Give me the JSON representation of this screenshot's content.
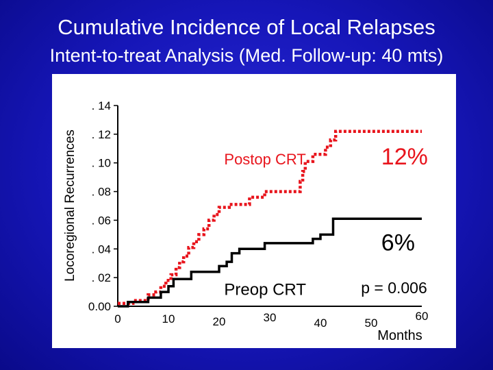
{
  "slide": {
    "title": "Cumulative Incidence of Local Relapses",
    "subtitle": "Intent-to-treat Analysis (Med. Follow-up: 40 mts)"
  },
  "chart_data": {
    "type": "line",
    "title": "Cumulative Incidence of Local Relapses",
    "subtitle": "Intent-to-treat Analysis (Med. Follow-up: 40 mts)",
    "xlabel": "Months",
    "ylabel": "Locoregional Recurrences",
    "xlim": [
      0,
      60
    ],
    "ylim": [
      0,
      0.14
    ],
    "x_ticks": [
      {
        "value": 0,
        "label": "0"
      },
      {
        "value": 10,
        "label": "10"
      },
      {
        "value": 20,
        "label": "20"
      },
      {
        "value": 30,
        "label": "30"
      },
      {
        "value": 40,
        "label": "40"
      },
      {
        "value": 50,
        "label": "50"
      },
      {
        "value": 60,
        "label": "60"
      }
    ],
    "y_ticks": [
      {
        "value": 0,
        "label": "0.00"
      },
      {
        "value": 0.02,
        "label": ". 02"
      },
      {
        "value": 0.04,
        "label": ". 04"
      },
      {
        "value": 0.06,
        "label": ". 06"
      },
      {
        "value": 0.08,
        "label": ". 08"
      },
      {
        "value": 0.1,
        "label": ". 10"
      },
      {
        "value": 0.12,
        "label": ". 12"
      },
      {
        "value": 0.14,
        "label": ". 14"
      }
    ],
    "grid": false,
    "series": [
      {
        "name": "Postop CRT",
        "color": "#e8141c",
        "style": "dotted-step",
        "points": [
          [
            0,
            0.002
          ],
          [
            3,
            0.002
          ],
          [
            3,
            0.004
          ],
          [
            6,
            0.004
          ],
          [
            6,
            0.008
          ],
          [
            7.5,
            0.008
          ],
          [
            7.5,
            0.01
          ],
          [
            8.5,
            0.01
          ],
          [
            8.5,
            0.014
          ],
          [
            9.5,
            0.014
          ],
          [
            9.5,
            0.018
          ],
          [
            10.5,
            0.018
          ],
          [
            10.5,
            0.022
          ],
          [
            11.5,
            0.022
          ],
          [
            11.5,
            0.027
          ],
          [
            12.2,
            0.027
          ],
          [
            12.2,
            0.031
          ],
          [
            13,
            0.031
          ],
          [
            13,
            0.035
          ],
          [
            14,
            0.035
          ],
          [
            14,
            0.041
          ],
          [
            15,
            0.041
          ],
          [
            15,
            0.045
          ],
          [
            16,
            0.045
          ],
          [
            16,
            0.05
          ],
          [
            17,
            0.05
          ],
          [
            17,
            0.054
          ],
          [
            18,
            0.054
          ],
          [
            18,
            0.06
          ],
          [
            19,
            0.06
          ],
          [
            19,
            0.064
          ],
          [
            20,
            0.064
          ],
          [
            20,
            0.069
          ],
          [
            22,
            0.069
          ],
          [
            22,
            0.071
          ],
          [
            26,
            0.071
          ],
          [
            26,
            0.076
          ],
          [
            29,
            0.076
          ],
          [
            29,
            0.08
          ],
          [
            36,
            0.08
          ],
          [
            36,
            0.087
          ],
          [
            36.5,
            0.087
          ],
          [
            36.5,
            0.094
          ],
          [
            37,
            0.094
          ],
          [
            37,
            0.101
          ],
          [
            38.5,
            0.101
          ],
          [
            38.5,
            0.106
          ],
          [
            41,
            0.106
          ],
          [
            41,
            0.111
          ],
          [
            42,
            0.111
          ],
          [
            42,
            0.116
          ],
          [
            43,
            0.116
          ],
          [
            43,
            0.122
          ],
          [
            60,
            0.122
          ]
        ]
      },
      {
        "name": "Preop CRT",
        "color": "#000000",
        "style": "solid-step",
        "points": [
          [
            0,
            0
          ],
          [
            2,
            0
          ],
          [
            2,
            0.003
          ],
          [
            6,
            0.003
          ],
          [
            6,
            0.006
          ],
          [
            8.5,
            0.006
          ],
          [
            8.5,
            0.01
          ],
          [
            10,
            0.01
          ],
          [
            10,
            0.014
          ],
          [
            11,
            0.014
          ],
          [
            11,
            0.019
          ],
          [
            14.5,
            0.019
          ],
          [
            14.5,
            0.024
          ],
          [
            20,
            0.024
          ],
          [
            20,
            0.028
          ],
          [
            21.5,
            0.028
          ],
          [
            21.5,
            0.031
          ],
          [
            22.5,
            0.031
          ],
          [
            22.5,
            0.037
          ],
          [
            24,
            0.037
          ],
          [
            24,
            0.04
          ],
          [
            29,
            0.04
          ],
          [
            29,
            0.044
          ],
          [
            38.5,
            0.044
          ],
          [
            38.5,
            0.047
          ],
          [
            40,
            0.047
          ],
          [
            40,
            0.05
          ],
          [
            42.5,
            0.05
          ],
          [
            42.5,
            0.061
          ],
          [
            60,
            0.061
          ]
        ]
      }
    ],
    "annotations": [
      {
        "text": "Postop CRT",
        "x": 21,
        "y": 0.099,
        "color": "#e8141c"
      },
      {
        "text": "12%",
        "x": 52,
        "y": 0.099,
        "color": "#e8141c"
      },
      {
        "text": "6%",
        "x": 52,
        "y": 0.039,
        "color": "#000000"
      },
      {
        "text": "Preop CRT",
        "x": 21,
        "y": 0.008,
        "color": "#000000"
      },
      {
        "text": "p = 0.006",
        "x": 48,
        "y": 0.009,
        "color": "#000000"
      }
    ]
  }
}
